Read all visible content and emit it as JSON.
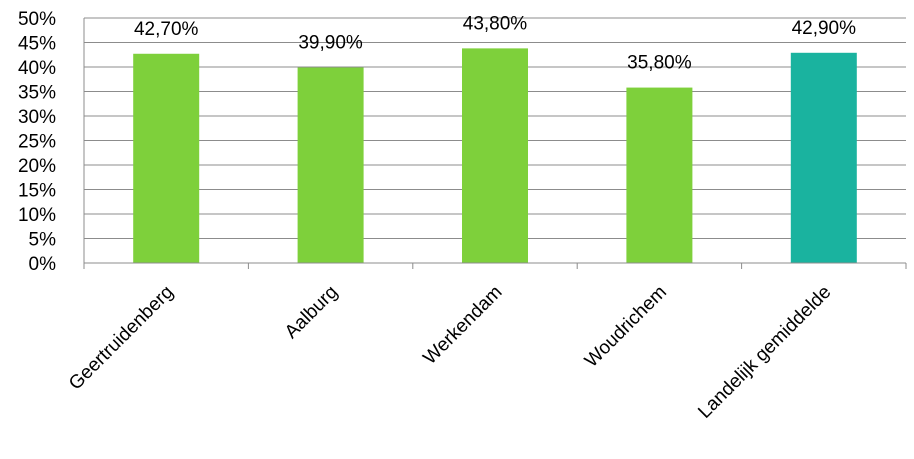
{
  "chart_data": {
    "type": "bar",
    "title": "",
    "xlabel": "",
    "ylabel": "",
    "categories": [
      "Geertruidenberg",
      "Aalburg",
      "Werkendam",
      "Woudrichem",
      "Landelijk gemiddelde"
    ],
    "values": [
      42.7,
      39.9,
      43.8,
      35.8,
      42.9
    ],
    "data_labels": [
      "42,70%",
      "39,90%",
      "43,80%",
      "35,80%",
      "42,90%"
    ],
    "y_ticks": [
      "0%",
      "5%",
      "10%",
      "15%",
      "20%",
      "25%",
      "30%",
      "35%",
      "40%",
      "45%",
      "50%"
    ],
    "ylim": [
      0,
      50
    ],
    "grid": true,
    "legend": "none",
    "colors": {
      "bar": "#7ed03b",
      "highlight_bar": "#1ab39f",
      "grid": "#8c8c8c"
    },
    "highlight_index": 4
  }
}
